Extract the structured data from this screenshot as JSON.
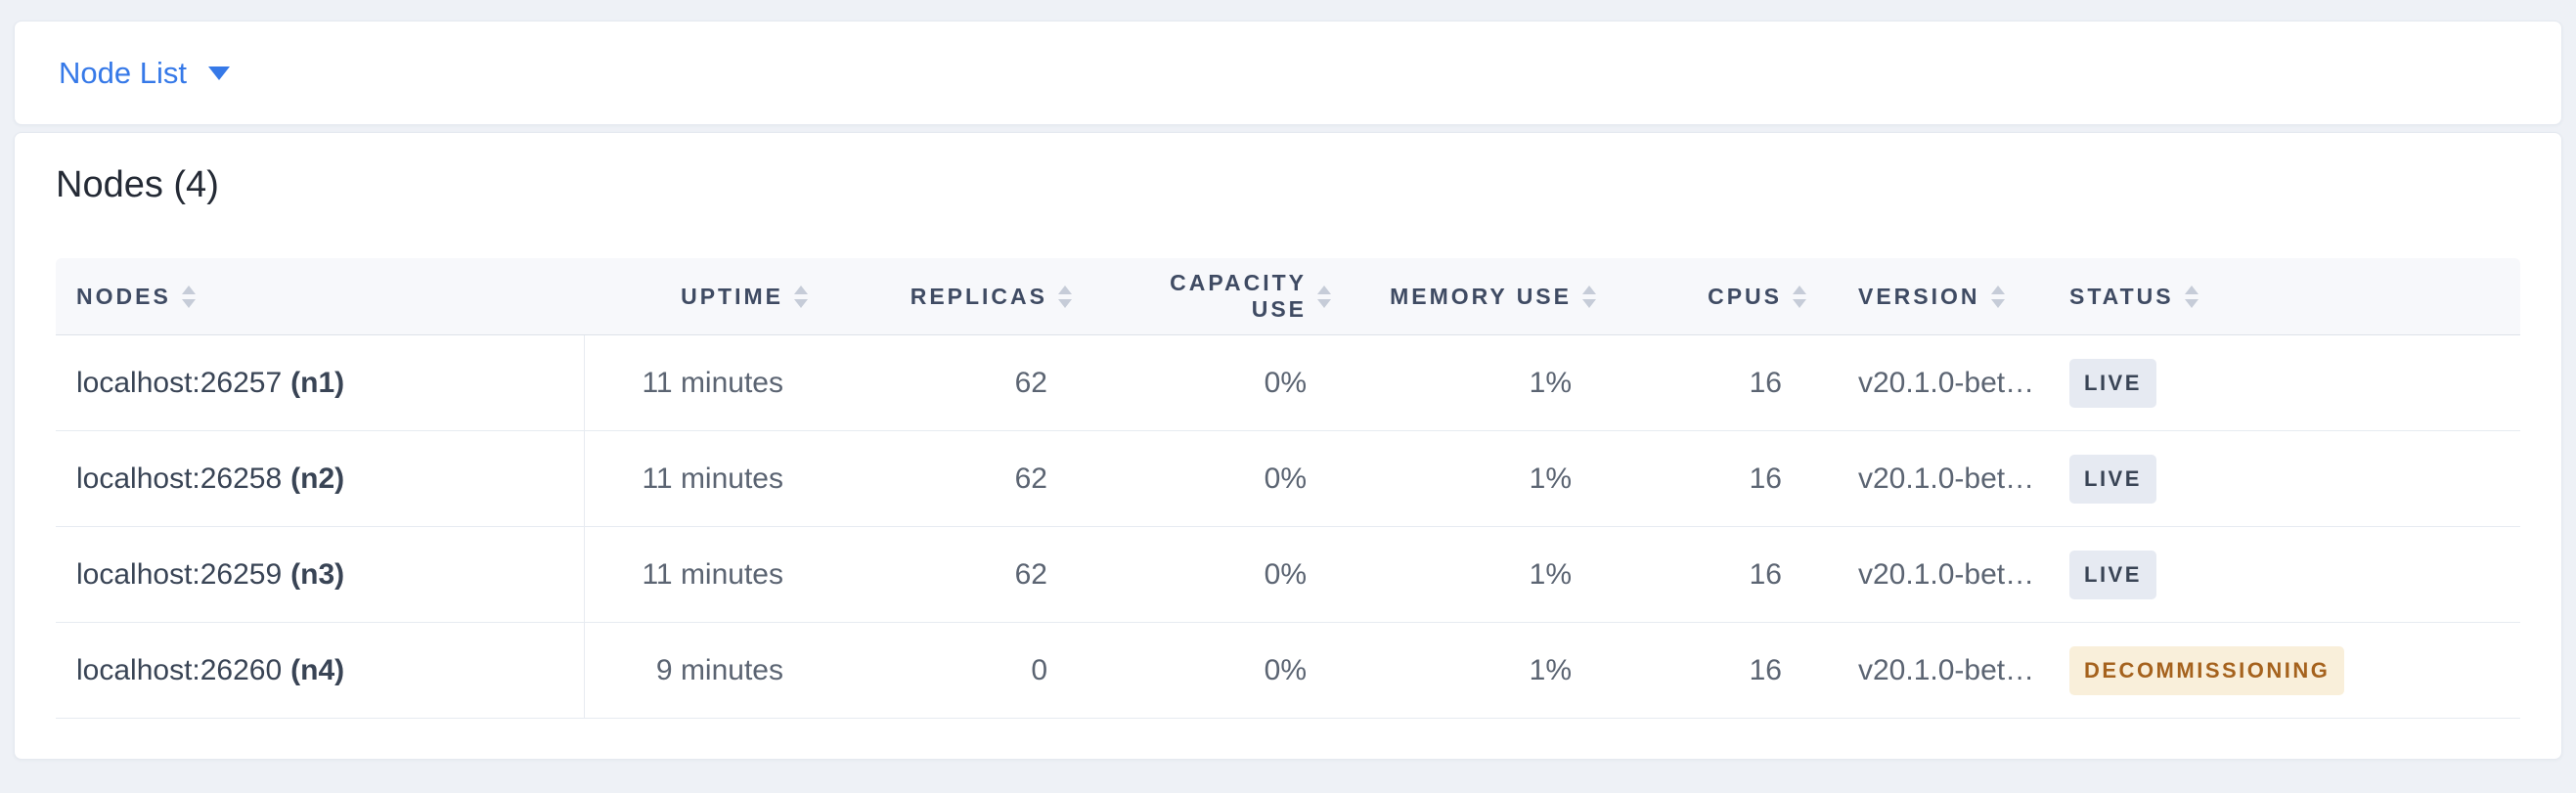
{
  "colors": {
    "accent_blue": "#3679e8",
    "page_background": "#eef1f6",
    "table_header_background": "#f7f8fb",
    "live_badge_background": "#e6eaf2",
    "live_badge_text": "#394455",
    "decommissioning_badge_background": "#f9efda",
    "decommissioning_badge_text": "#a5621d"
  },
  "view_dropdown": {
    "label": "Node List"
  },
  "nodes_section": {
    "title": "Nodes (4)",
    "table": {
      "columns": [
        {
          "label": "NODES"
        },
        {
          "label": "UPTIME"
        },
        {
          "label": "REPLICAS"
        },
        {
          "label": "CAPACITY USE"
        },
        {
          "label": "MEMORY USE"
        },
        {
          "label": "CPUS"
        },
        {
          "label": "VERSION"
        },
        {
          "label": "STATUS"
        }
      ],
      "rows": [
        {
          "address": "localhost:26257",
          "node_id": "(n1)",
          "uptime": "11 minutes",
          "replicas": "62",
          "capacity_use": "0%",
          "memory_use": "1%",
          "cpus": "16",
          "version": "v20.1.0-bet…",
          "status": "LIVE"
        },
        {
          "address": "localhost:26258",
          "node_id": "(n2)",
          "uptime": "11 minutes",
          "replicas": "62",
          "capacity_use": "0%",
          "memory_use": "1%",
          "cpus": "16",
          "version": "v20.1.0-bet…",
          "status": "LIVE"
        },
        {
          "address": "localhost:26259",
          "node_id": "(n3)",
          "uptime": "11 minutes",
          "replicas": "62",
          "capacity_use": "0%",
          "memory_use": "1%",
          "cpus": "16",
          "version": "v20.1.0-bet…",
          "status": "LIVE"
        },
        {
          "address": "localhost:26260",
          "node_id": "(n4)",
          "uptime": "9 minutes",
          "replicas": "0",
          "capacity_use": "0%",
          "memory_use": "1%",
          "cpus": "16",
          "version": "v20.1.0-bet…",
          "status": "DECOMMISSIONING"
        }
      ]
    }
  }
}
